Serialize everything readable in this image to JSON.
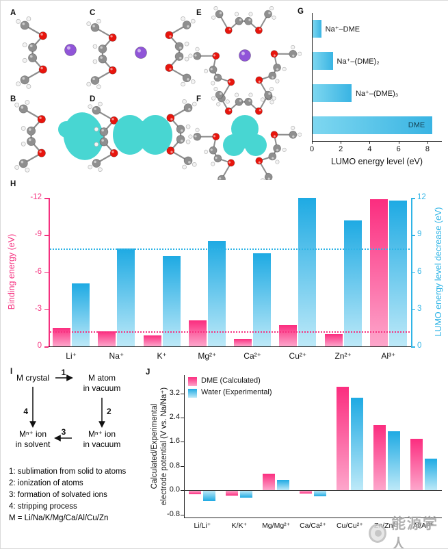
{
  "panels": {
    "A": {
      "label": "A"
    },
    "B": {
      "label": "B"
    },
    "C": {
      "label": "C"
    },
    "D": {
      "label": "D"
    },
    "E": {
      "label": "E"
    },
    "F": {
      "label": "F"
    },
    "G": {
      "label": "G"
    },
    "H": {
      "label": "H"
    },
    "I": {
      "label": "I",
      "nodes": {
        "crystal": "M crystal",
        "atom": "M atom\nin vacuum",
        "ion_vacuum": "Mⁿ⁺ ion\nin vacuum",
        "ion_solvent": "Mⁿ⁺ ion\nin solvent"
      },
      "steps": [
        "1",
        "2",
        "3",
        "4"
      ],
      "legend": [
        "1: sublimation from solid to atoms",
        "2: ionization of atoms",
        "3: formation of solvated ions",
        "4: stripping process",
        "M = Li/Na/K/Mg/Ca/Al/Cu/Zn"
      ]
    },
    "J": {
      "label": "J"
    }
  },
  "watermark": {
    "text": "能源学人"
  },
  "palette": {
    "pink": "#f5317f",
    "pink_dark": "#fb2d7f",
    "pink_light": "#fda6cb",
    "blue": "#2fb4e6",
    "blue_dark": "#1eaae3",
    "blue_light": "#bde9f8",
    "cyan_blob": "#3dd4d0",
    "carbon": "#8f8f8f",
    "hydrogen": "#f3f3f3",
    "oxygen": "#e8150d",
    "sodium": "#9055d8",
    "axis": "#222222"
  },
  "chart_data": [
    {
      "id": "G",
      "type": "bar",
      "orientation": "horizontal",
      "categories": [
        "Na⁺–DME",
        "Na⁺–(DME)₂",
        "Na⁺–(DME)₃",
        "DME"
      ],
      "values": [
        0.6,
        1.4,
        2.7,
        8.3
      ],
      "xlabel": "LUMO energy level (eV)",
      "xlim": [
        0,
        9
      ],
      "xticks": [
        0,
        2,
        4,
        6,
        8
      ]
    },
    {
      "id": "H",
      "type": "bar",
      "categories": [
        "Li⁺",
        "Na⁺",
        "K⁺",
        "Mg²⁺",
        "Ca²⁺",
        "Cu²⁺",
        "Zn²⁺",
        "Al³⁺"
      ],
      "series": [
        {
          "name": "Binding energy (eV)",
          "axis": "left",
          "color": "pink",
          "values": [
            -1.5,
            -1.2,
            -0.9,
            -2.1,
            -0.6,
            -1.7,
            -1.0,
            -11.9
          ]
        },
        {
          "name": "LUMO energy level decrease (eV)",
          "axis": "right",
          "color": "blue",
          "values": [
            5.1,
            7.9,
            7.3,
            8.5,
            7.5,
            12.0,
            10.2,
            11.8
          ]
        }
      ],
      "left_axis": {
        "label": "Binding energy (eV)",
        "ticks": [
          -12,
          -9,
          -6,
          -3,
          0
        ],
        "lim": [
          0,
          -12
        ]
      },
      "right_axis": {
        "label": "LUMO energy level decrease (eV)",
        "ticks": [
          12,
          9,
          6,
          3,
          0
        ],
        "lim": [
          0,
          12
        ]
      },
      "reference_lines": [
        {
          "axis": "left",
          "value": -1.2
        },
        {
          "axis": "right",
          "value": 7.9
        }
      ]
    },
    {
      "id": "J",
      "type": "bar",
      "categories": [
        "Li/Li⁺",
        "K/K⁺",
        "Mg/Mg²⁺",
        "Ca/Ca²⁺",
        "Cu/Cu²⁺",
        "Zn/Zn²⁺",
        "Al/Al³⁺"
      ],
      "series": [
        {
          "name": "DME (Calculated)",
          "color": "pink",
          "values": [
            -0.1,
            -0.15,
            0.55,
            -0.08,
            3.42,
            2.15,
            1.7
          ]
        },
        {
          "name": "Water (Experimental)",
          "color": "blue",
          "values": [
            -0.33,
            -0.22,
            0.34,
            -0.18,
            3.05,
            1.95,
            1.05
          ]
        }
      ],
      "ylabel": "Calculated/Experimental\nelectrode potential (V vs. Na/Na⁺)",
      "ylim": [
        -0.9,
        3.8
      ],
      "yticks": [
        3.2,
        2.4,
        1.6,
        0.8,
        0.0,
        -0.8
      ]
    }
  ]
}
